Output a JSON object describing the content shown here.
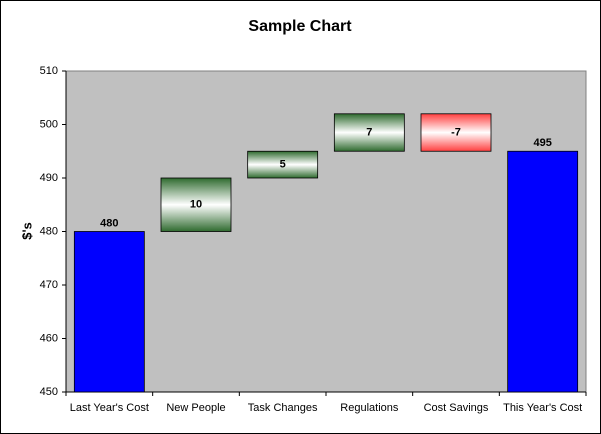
{
  "chart_data": {
    "type": "waterfall",
    "title": "Sample Chart",
    "y_label": "$'s",
    "categories": [
      "Last Year's Cost",
      "New People",
      "Task Changes",
      "Regulations",
      "Cost Savings",
      "This Year's Cost"
    ],
    "values": [
      480,
      10,
      5,
      7,
      -7,
      495
    ],
    "measures": [
      "absolute",
      "relative",
      "relative",
      "relative",
      "relative",
      "total"
    ],
    "total_color": "#0000ff",
    "increase_color": "#2f6b2f",
    "decrease_color": "#ff4040",
    "ylim": [
      450,
      510
    ],
    "yticks": [
      450,
      460,
      470,
      480,
      490,
      500,
      510
    ],
    "background": "#c0c0c0"
  }
}
